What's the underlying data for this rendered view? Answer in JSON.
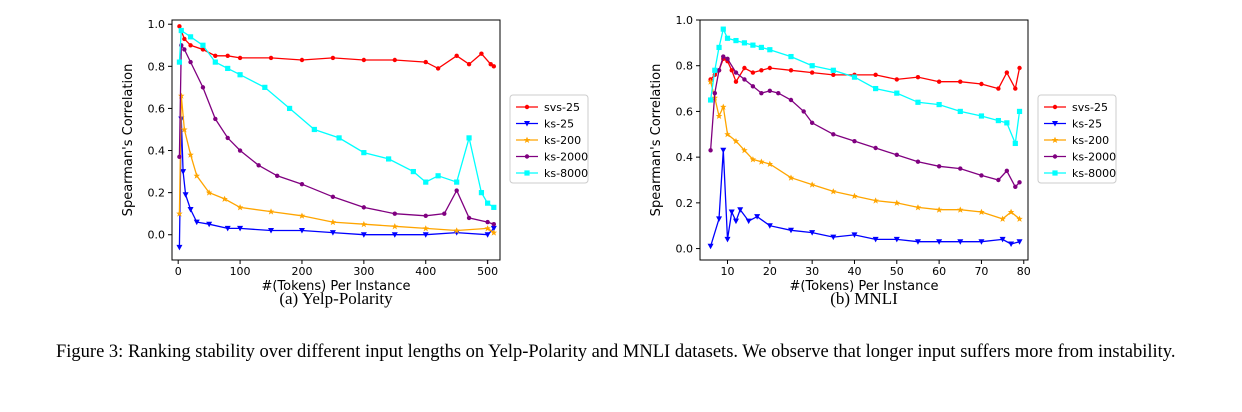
{
  "caption": {
    "text": "Figure 3: Ranking stability over different input lengths on Yelp-Polarity and MNLI datasets. We observe that longer input suffers more from instability."
  },
  "colors": {
    "svs-25": "#ff0000",
    "ks-25": "#0000ff",
    "ks-200": "#ffa500",
    "ks-2000": "#800080",
    "ks-8000": "#00ffff"
  },
  "chart_data": [
    {
      "type": "line",
      "subcaption": "(a) Yelp-Polarity",
      "xlabel": "#(Tokens) Per Instance",
      "ylabel": "Spearman's Correlation",
      "xlim": [
        -10,
        520
      ],
      "ylim": [
        -0.12,
        1.02
      ],
      "xticks": [
        0,
        100,
        200,
        300,
        400,
        500
      ],
      "yticks": [
        0.0,
        0.2,
        0.4,
        0.6,
        0.8,
        1.0
      ],
      "legend": "right-outside",
      "series": [
        {
          "name": "svs-25",
          "marker": "dot",
          "points": [
            [
              2,
              0.99
            ],
            [
              10,
              0.93
            ],
            [
              20,
              0.9
            ],
            [
              40,
              0.88
            ],
            [
              60,
              0.85
            ],
            [
              80,
              0.85
            ],
            [
              100,
              0.84
            ],
            [
              150,
              0.84
            ],
            [
              200,
              0.83
            ],
            [
              250,
              0.84
            ],
            [
              300,
              0.83
            ],
            [
              350,
              0.83
            ],
            [
              400,
              0.82
            ],
            [
              420,
              0.79
            ],
            [
              450,
              0.85
            ],
            [
              470,
              0.81
            ],
            [
              490,
              0.86
            ],
            [
              505,
              0.81
            ],
            [
              510,
              0.8
            ]
          ]
        },
        {
          "name": "ks-25",
          "marker": "triangle-down",
          "points": [
            [
              2,
              -0.06
            ],
            [
              5,
              0.55
            ],
            [
              8,
              0.3
            ],
            [
              12,
              0.19
            ],
            [
              20,
              0.12
            ],
            [
              30,
              0.06
            ],
            [
              50,
              0.05
            ],
            [
              80,
              0.03
            ],
            [
              100,
              0.03
            ],
            [
              150,
              0.02
            ],
            [
              200,
              0.02
            ],
            [
              250,
              0.01
            ],
            [
              300,
              0.0
            ],
            [
              350,
              0.0
            ],
            [
              400,
              0.0
            ],
            [
              450,
              0.01
            ],
            [
              500,
              0.0
            ],
            [
              510,
              0.03
            ]
          ]
        },
        {
          "name": "ks-200",
          "marker": "star",
          "points": [
            [
              2,
              0.1
            ],
            [
              5,
              0.66
            ],
            [
              10,
              0.5
            ],
            [
              20,
              0.38
            ],
            [
              30,
              0.28
            ],
            [
              50,
              0.2
            ],
            [
              75,
              0.17
            ],
            [
              100,
              0.13
            ],
            [
              150,
              0.11
            ],
            [
              200,
              0.09
            ],
            [
              250,
              0.06
            ],
            [
              300,
              0.05
            ],
            [
              350,
              0.04
            ],
            [
              400,
              0.03
            ],
            [
              450,
              0.02
            ],
            [
              500,
              0.03
            ],
            [
              510,
              0.01
            ]
          ]
        },
        {
          "name": "ks-2000",
          "marker": "dot",
          "points": [
            [
              2,
              0.37
            ],
            [
              5,
              0.9
            ],
            [
              10,
              0.88
            ],
            [
              20,
              0.82
            ],
            [
              40,
              0.7
            ],
            [
              60,
              0.55
            ],
            [
              80,
              0.46
            ],
            [
              100,
              0.4
            ],
            [
              130,
              0.33
            ],
            [
              160,
              0.28
            ],
            [
              200,
              0.24
            ],
            [
              250,
              0.18
            ],
            [
              300,
              0.13
            ],
            [
              350,
              0.1
            ],
            [
              400,
              0.09
            ],
            [
              430,
              0.1
            ],
            [
              450,
              0.21
            ],
            [
              470,
              0.08
            ],
            [
              500,
              0.06
            ],
            [
              510,
              0.05
            ]
          ]
        },
        {
          "name": "ks-8000",
          "marker": "square",
          "points": [
            [
              2,
              0.82
            ],
            [
              5,
              0.97
            ],
            [
              20,
              0.94
            ],
            [
              40,
              0.9
            ],
            [
              60,
              0.82
            ],
            [
              80,
              0.79
            ],
            [
              100,
              0.76
            ],
            [
              140,
              0.7
            ],
            [
              180,
              0.6
            ],
            [
              220,
              0.5
            ],
            [
              260,
              0.46
            ],
            [
              300,
              0.39
            ],
            [
              340,
              0.36
            ],
            [
              380,
              0.3
            ],
            [
              400,
              0.25
            ],
            [
              420,
              0.28
            ],
            [
              450,
              0.25
            ],
            [
              470,
              0.46
            ],
            [
              490,
              0.2
            ],
            [
              500,
              0.15
            ],
            [
              510,
              0.13
            ]
          ]
        }
      ]
    },
    {
      "type": "line",
      "subcaption": "(b) MNLI",
      "xlabel": "#(Tokens) Per Instance",
      "ylabel": "Spearman's Correlation",
      "xlim": [
        3.5,
        81
      ],
      "ylim": [
        -0.05,
        1.0
      ],
      "xticks": [
        10,
        20,
        30,
        40,
        50,
        60,
        70,
        80
      ],
      "yticks": [
        0.0,
        0.2,
        0.4,
        0.6,
        0.8,
        1.0
      ],
      "legend": "right-outside",
      "series": [
        {
          "name": "svs-25",
          "marker": "dot",
          "points": [
            [
              6,
              0.74
            ],
            [
              7,
              0.76
            ],
            [
              8,
              0.78
            ],
            [
              9,
              0.83
            ],
            [
              10,
              0.82
            ],
            [
              11,
              0.78
            ],
            [
              12,
              0.73
            ],
            [
              14,
              0.79
            ],
            [
              16,
              0.77
            ],
            [
              18,
              0.78
            ],
            [
              20,
              0.79
            ],
            [
              25,
              0.78
            ],
            [
              30,
              0.77
            ],
            [
              35,
              0.76
            ],
            [
              40,
              0.76
            ],
            [
              45,
              0.76
            ],
            [
              50,
              0.74
            ],
            [
              55,
              0.75
            ],
            [
              60,
              0.73
            ],
            [
              65,
              0.73
            ],
            [
              70,
              0.72
            ],
            [
              74,
              0.7
            ],
            [
              76,
              0.77
            ],
            [
              78,
              0.7
            ],
            [
              79,
              0.79
            ]
          ]
        },
        {
          "name": "ks-25",
          "marker": "triangle-down",
          "points": [
            [
              6,
              0.01
            ],
            [
              8,
              0.13
            ],
            [
              9,
              0.43
            ],
            [
              10,
              0.04
            ],
            [
              11,
              0.16
            ],
            [
              12,
              0.12
            ],
            [
              13,
              0.17
            ],
            [
              15,
              0.12
            ],
            [
              17,
              0.14
            ],
            [
              20,
              0.1
            ],
            [
              25,
              0.08
            ],
            [
              30,
              0.07
            ],
            [
              35,
              0.05
            ],
            [
              40,
              0.06
            ],
            [
              45,
              0.04
            ],
            [
              50,
              0.04
            ],
            [
              55,
              0.03
            ],
            [
              60,
              0.03
            ],
            [
              65,
              0.03
            ],
            [
              70,
              0.03
            ],
            [
              75,
              0.04
            ],
            [
              77,
              0.02
            ],
            [
              79,
              0.03
            ]
          ]
        },
        {
          "name": "ks-200",
          "marker": "star",
          "points": [
            [
              6,
              0.73
            ],
            [
              7,
              0.66
            ],
            [
              8,
              0.58
            ],
            [
              9,
              0.62
            ],
            [
              10,
              0.5
            ],
            [
              12,
              0.47
            ],
            [
              14,
              0.43
            ],
            [
              16,
              0.39
            ],
            [
              18,
              0.38
            ],
            [
              20,
              0.37
            ],
            [
              25,
              0.31
            ],
            [
              30,
              0.28
            ],
            [
              35,
              0.25
            ],
            [
              40,
              0.23
            ],
            [
              45,
              0.21
            ],
            [
              50,
              0.2
            ],
            [
              55,
              0.18
            ],
            [
              60,
              0.17
            ],
            [
              65,
              0.17
            ],
            [
              70,
              0.16
            ],
            [
              75,
              0.13
            ],
            [
              77,
              0.16
            ],
            [
              79,
              0.13
            ]
          ]
        },
        {
          "name": "ks-2000",
          "marker": "dot",
          "points": [
            [
              6,
              0.43
            ],
            [
              7,
              0.68
            ],
            [
              8,
              0.78
            ],
            [
              9,
              0.84
            ],
            [
              10,
              0.83
            ],
            [
              12,
              0.77
            ],
            [
              14,
              0.74
            ],
            [
              16,
              0.71
            ],
            [
              18,
              0.68
            ],
            [
              20,
              0.69
            ],
            [
              22,
              0.68
            ],
            [
              25,
              0.65
            ],
            [
              28,
              0.6
            ],
            [
              30,
              0.55
            ],
            [
              35,
              0.5
            ],
            [
              40,
              0.47
            ],
            [
              45,
              0.44
            ],
            [
              50,
              0.41
            ],
            [
              55,
              0.38
            ],
            [
              60,
              0.36
            ],
            [
              65,
              0.35
            ],
            [
              70,
              0.32
            ],
            [
              74,
              0.3
            ],
            [
              76,
              0.34
            ],
            [
              78,
              0.27
            ],
            [
              79,
              0.29
            ]
          ]
        },
        {
          "name": "ks-8000",
          "marker": "square",
          "points": [
            [
              6,
              0.65
            ],
            [
              7,
              0.78
            ],
            [
              8,
              0.88
            ],
            [
              9,
              0.96
            ],
            [
              10,
              0.92
            ],
            [
              12,
              0.91
            ],
            [
              14,
              0.9
            ],
            [
              16,
              0.89
            ],
            [
              18,
              0.88
            ],
            [
              20,
              0.87
            ],
            [
              25,
              0.84
            ],
            [
              30,
              0.8
            ],
            [
              35,
              0.78
            ],
            [
              40,
              0.75
            ],
            [
              45,
              0.7
            ],
            [
              50,
              0.68
            ],
            [
              55,
              0.64
            ],
            [
              60,
              0.63
            ],
            [
              65,
              0.6
            ],
            [
              70,
              0.58
            ],
            [
              74,
              0.56
            ],
            [
              76,
              0.55
            ],
            [
              78,
              0.46
            ],
            [
              79,
              0.6
            ]
          ]
        }
      ]
    }
  ]
}
